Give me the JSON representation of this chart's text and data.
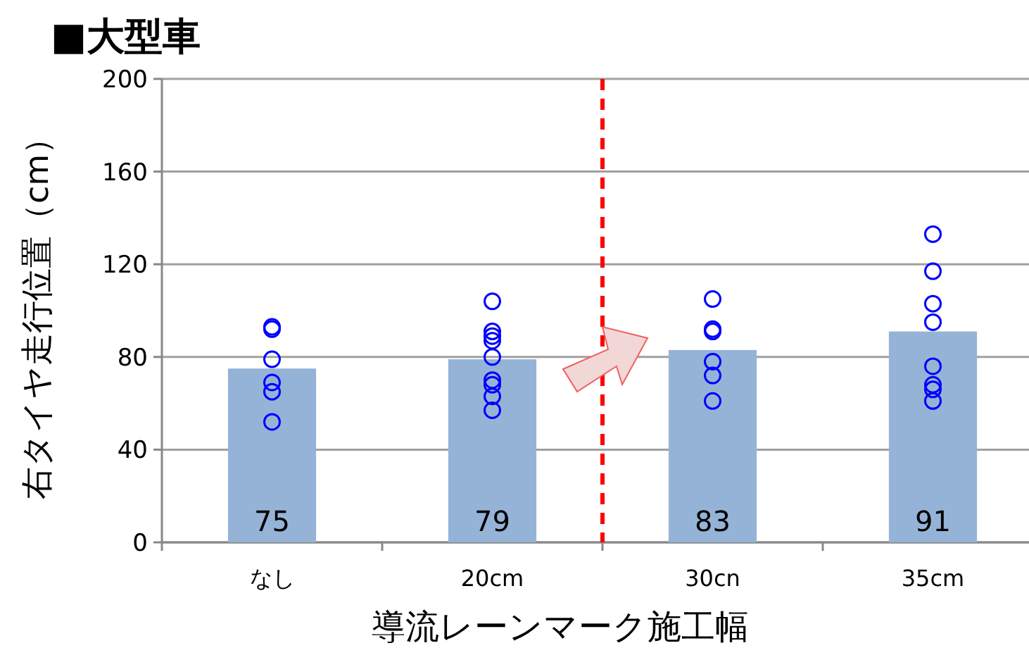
{
  "chart_data": {
    "type": "bar",
    "title": "■大型車",
    "xlabel": "導流レーンマーク施工幅",
    "ylabel": "右タイヤ走行位置（cm）",
    "categories": [
      "なし",
      "20cm",
      "30cn",
      "35cm"
    ],
    "series": [
      {
        "color": "#95b3d7",
        "values": [
          75,
          79,
          83,
          91
        ],
        "data_labels": true
      },
      {
        "type": "scatter",
        "color": "#0000ff",
        "marker": "circle",
        "values": [
          93,
          104,
          105,
          133
        ]
      },
      {
        "type": "scatter",
        "color": "#0000ff",
        "marker": "circle",
        "values": [
          92,
          91,
          92,
          117
        ]
      },
      {
        "type": "scatter",
        "color": "#0000ff",
        "marker": "circle",
        "values": [
          79,
          89,
          91,
          103
        ]
      },
      {
        "type": "scatter",
        "color": "#0000ff",
        "marker": "circle",
        "values": [
          69,
          87,
          78,
          95
        ]
      },
      {
        "type": "scatter",
        "color": "#0000ff",
        "marker": "circle",
        "values": [
          65,
          80,
          72,
          76
        ]
      },
      {
        "type": "scatter",
        "color": "#0000ff",
        "marker": "circle",
        "values": [
          52,
          70,
          61,
          68
        ]
      },
      {
        "type": "scatter",
        "color": "#0000ff",
        "marker": "circle",
        "values": [
          null,
          68,
          null,
          66
        ]
      },
      {
        "type": "scatter",
        "color": "#0000ff",
        "marker": "circle",
        "values": [
          null,
          63,
          null,
          61
        ]
      },
      {
        "type": "scatter",
        "color": "#0000ff",
        "marker": "circle",
        "values": [
          null,
          57,
          null,
          null
        ]
      }
    ],
    "ylim": [
      0,
      200
    ],
    "yticks": [
      0,
      40,
      80,
      120,
      160,
      200
    ],
    "grid": "y"
  }
}
